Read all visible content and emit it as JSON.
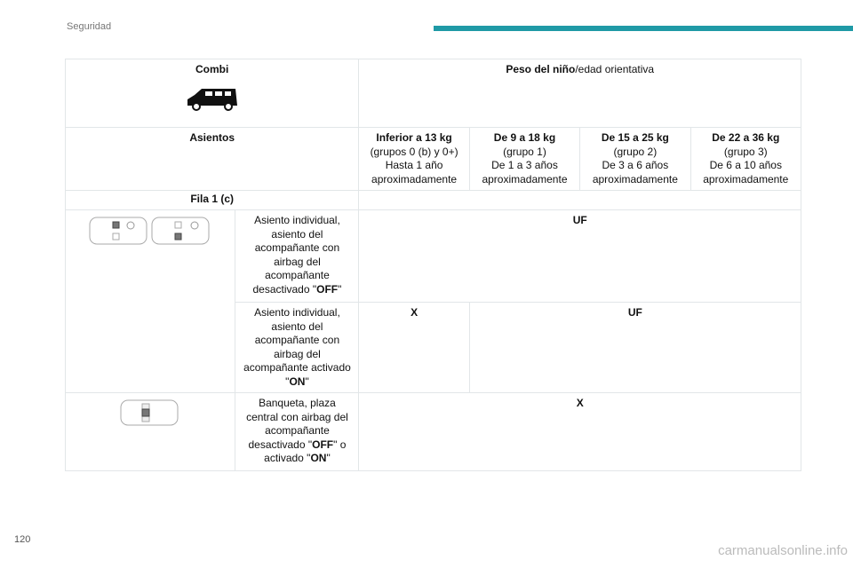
{
  "header": {
    "section": "Seguridad",
    "accent": "#1f9aa6"
  },
  "table": {
    "vehicle": "Combi",
    "weight_title_bold": "Peso del niño",
    "weight_title_rest": "/edad orientativa",
    "seats_label": "Asientos",
    "groups": [
      {
        "title": "Inferior a 13 kg",
        "l1": "(grupos 0 (b) y 0+)",
        "l2": "Hasta 1 año",
        "l3": "aproximadamente"
      },
      {
        "title": "De 9 a 18 kg",
        "l1": "(grupo 1)",
        "l2": "De 1 a 3 años",
        "l3": "aproximadamente"
      },
      {
        "title": "De 15 a 25 kg",
        "l1": "(grupo 2)",
        "l2": "De 3 a 6 años",
        "l3": "aproximadamente"
      },
      {
        "title": "De 22 a 36 kg",
        "l1": "(grupo 3)",
        "l2": "De 6 a 10 años",
        "l3": "aproximadamente"
      }
    ],
    "row_label": "Fila 1 (c)",
    "rows": [
      {
        "desc": "Asiento individual, asiento del acompañante con airbag del acompañante desactivado \"",
        "bold": "OFF",
        "end": "\"",
        "value": "UF"
      },
      {
        "desc": "Asiento individual, asiento del acompañante con airbag del acompañante activado \"",
        "bold": "ON",
        "end": "\"",
        "value1": "X",
        "value2": "UF"
      },
      {
        "desc": "Banqueta, plaza central con airbag del acompañante desactivado \"",
        "bold": "OFF",
        "mid": "\" o activado \"",
        "bold2": "ON",
        "end": "\"",
        "value": "X"
      }
    ]
  },
  "footer": {
    "page": "120",
    "watermark": "carmanualsonline.info"
  }
}
